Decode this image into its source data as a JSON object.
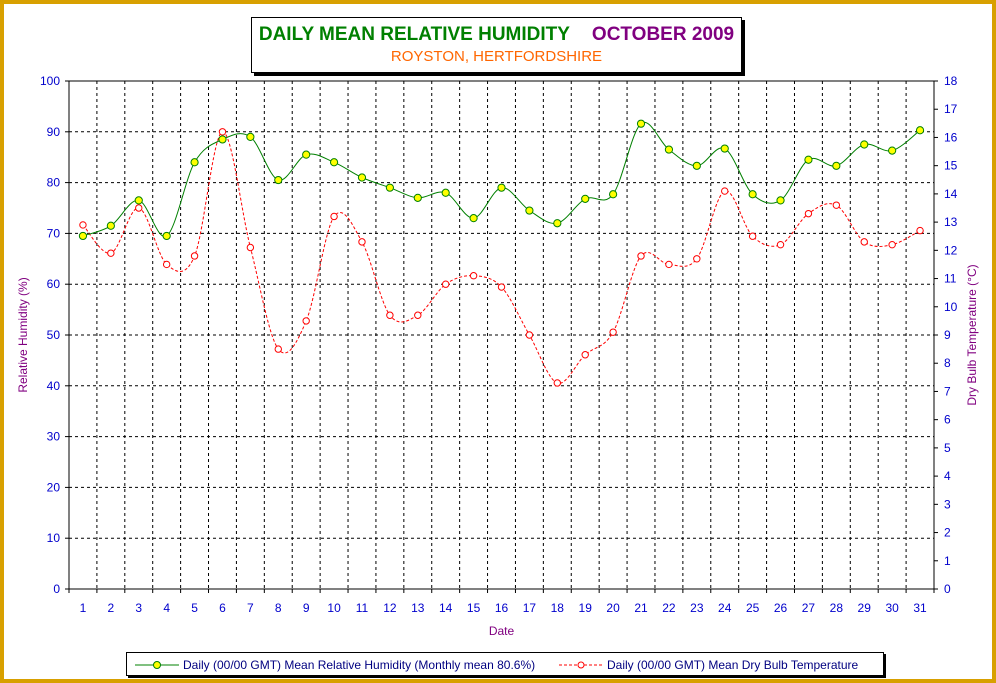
{
  "title": {
    "main": "DAILY MEAN RELATIVE HUMIDITY",
    "month": "OCTOBER 2009",
    "subtitle": "ROYSTON, HERTFORDSHIRE"
  },
  "colors": {
    "humidity_line": "#008000",
    "humidity_marker": "#ffff00",
    "temperature_line": "#ff0000",
    "axis_text": "#0000cc",
    "axis_label": "#800080",
    "frame": "#d8a000"
  },
  "chart_data": {
    "type": "line",
    "xlabel": "Date",
    "ylabel": "Relative Humidity (%)",
    "y2label": "Dry Bulb Temperature (°C)",
    "ylim": [
      0,
      100
    ],
    "y2lim": [
      0,
      18
    ],
    "grid": true,
    "legend_position": "bottom",
    "x": [
      1,
      2,
      3,
      4,
      5,
      6,
      7,
      8,
      9,
      10,
      11,
      12,
      13,
      14,
      15,
      16,
      17,
      18,
      19,
      20,
      21,
      22,
      23,
      24,
      25,
      26,
      27,
      28,
      29,
      30,
      31
    ],
    "series": [
      {
        "name": "Daily (00/00 GMT) Mean Relative Humidity (Monthly mean 80.6%)",
        "axis": "left",
        "values": [
          69.5,
          71.5,
          76.5,
          69.5,
          84.0,
          88.5,
          89.0,
          80.5,
          85.5,
          84.0,
          81.0,
          79.0,
          77.0,
          78.0,
          73.0,
          79.0,
          74.5,
          72.0,
          76.8,
          77.7,
          91.6,
          86.5,
          83.3,
          86.7,
          77.7,
          76.5,
          84.5,
          83.3,
          87.5,
          86.3,
          90.3
        ]
      },
      {
        "name": "Daily (00/00 GMT) Mean Dry Bulb Temperature",
        "axis": "right",
        "values": [
          12.9,
          11.9,
          13.5,
          11.5,
          11.8,
          16.2,
          12.1,
          8.5,
          9.5,
          13.2,
          12.3,
          9.7,
          9.7,
          10.8,
          11.1,
          10.7,
          9.0,
          7.3,
          8.3,
          9.1,
          11.8,
          11.5,
          11.7,
          14.1,
          12.5,
          12.2,
          13.3,
          13.6,
          12.3,
          12.2,
          12.7
        ]
      }
    ],
    "yticks": [
      "0",
      "10",
      "20",
      "30",
      "40",
      "50",
      "60",
      "70",
      "80",
      "90",
      "100"
    ],
    "y2ticks": [
      "0",
      "1",
      "2",
      "3",
      "4",
      "5",
      "6",
      "7",
      "8",
      "9",
      "10",
      "11",
      "12",
      "13",
      "14",
      "15",
      "16",
      "17",
      "18"
    ]
  }
}
